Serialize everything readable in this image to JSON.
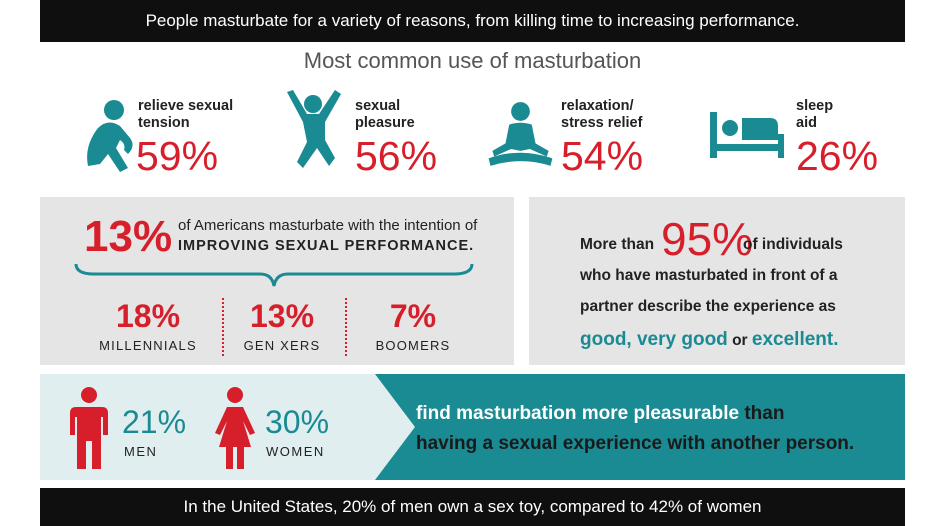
{
  "top_banner": "People masturbate for a variety of reasons, from killing time to increasing performance.",
  "heading": "Most common use of masturbation",
  "uses": [
    {
      "label_line1": "relieve sexual",
      "label_line2": "tension",
      "percent": "59%",
      "icon": "sitting-person-icon"
    },
    {
      "label_line1": "sexual",
      "label_line2": "pleasure",
      "percent": "56%",
      "icon": "jumping-person-icon"
    },
    {
      "label_line1": "relaxation/",
      "label_line2": "stress relief",
      "percent": "54%",
      "icon": "meditating-person-icon"
    },
    {
      "label_line1": "sleep",
      "label_line2": "aid",
      "percent": "26%",
      "icon": "bed-icon"
    }
  ],
  "performance": {
    "percent": "13%",
    "line1": "of Americans masturbate with the intention of",
    "line2": "IMPROVING SEXUAL PERFORMANCE."
  },
  "generations": [
    {
      "percent": "18%",
      "label": "MILLENNIALS"
    },
    {
      "percent": "13%",
      "label": "GEN XERS"
    },
    {
      "percent": "7%",
      "label": "BOOMERS"
    }
  ],
  "partner": {
    "prefix": "More than",
    "percent": "95%",
    "suffix": "of individuals",
    "line2": "who have masturbated in front of a",
    "line3": "partner describe the experience as",
    "good_phrase": "good, very good",
    "or_word": "or",
    "excellent": "excellent."
  },
  "gender": [
    {
      "percent": "21%",
      "label": "MEN",
      "icon": "man-icon"
    },
    {
      "percent": "30%",
      "label": "WOMEN",
      "icon": "woman-icon"
    }
  ],
  "pleasure": {
    "highlight": "find masturbation more pleasurable",
    "than": "than",
    "line2": "having a sexual experience with another person."
  },
  "bottom_banner": "In the United States, 20% of men own a sex toy, compared to 42% of women",
  "colors": {
    "accent_red": "#d71f2b",
    "teal": "#1a8a93",
    "dark": "#0f0f0f",
    "panel_gray": "#e5e5e5",
    "light_teal": "#e1eef0"
  }
}
